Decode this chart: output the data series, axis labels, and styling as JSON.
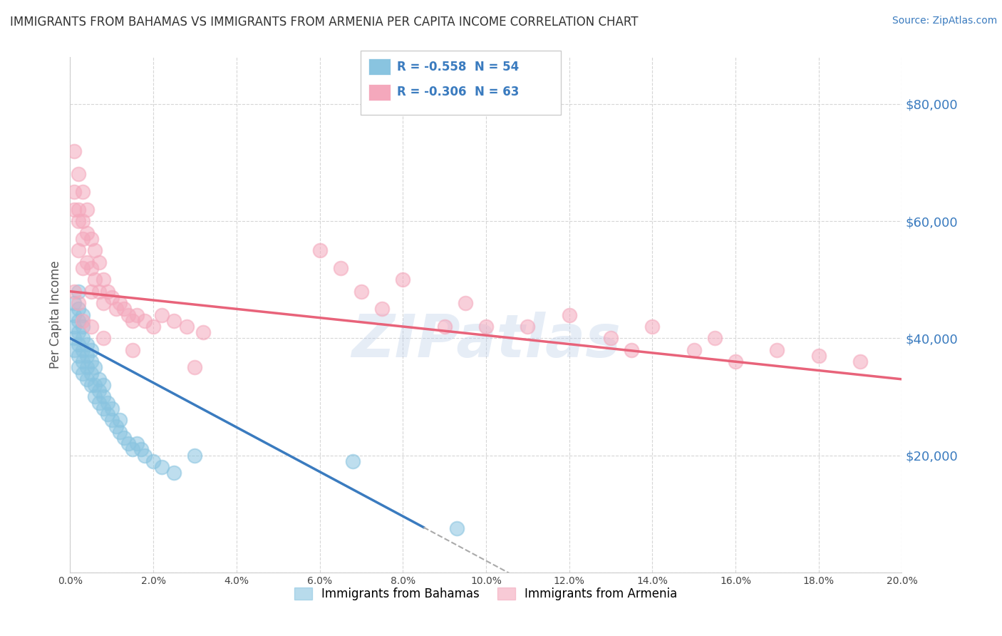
{
  "title": "IMMIGRANTS FROM BAHAMAS VS IMMIGRANTS FROM ARMENIA PER CAPITA INCOME CORRELATION CHART",
  "source": "Source: ZipAtlas.com",
  "ylabel": "Per Capita Income",
  "xmin": 0.0,
  "xmax": 0.2,
  "ymin": 0,
  "ymax": 88000,
  "yticks": [
    0,
    20000,
    40000,
    60000,
    80000
  ],
  "ytick_labels": [
    "",
    "$20,000",
    "$40,000",
    "$60,000",
    "$80,000"
  ],
  "legend_r1": "-0.558",
  "legend_n1": "54",
  "legend_r2": "-0.306",
  "legend_n2": "63",
  "label1": "Immigrants from Bahamas",
  "label2": "Immigrants from Armenia",
  "color1": "#89c4e0",
  "color2": "#f4a8bc",
  "line_color1": "#3a7bbf",
  "line_color2": "#e8637a",
  "watermark": "ZIPatlas",
  "bah_intercept": 40000,
  "bah_slope": -380000,
  "arm_intercept": 48000,
  "arm_slope": -75000,
  "bah_line_xstart": 0.0,
  "bah_line_xend": 0.085,
  "bah_dash_xstart": 0.085,
  "bah_dash_xend": 0.145,
  "arm_line_xstart": 0.0,
  "arm_line_xend": 0.2,
  "bahamas_x": [
    0.001,
    0.001,
    0.001,
    0.001,
    0.001,
    0.002,
    0.002,
    0.002,
    0.002,
    0.002,
    0.002,
    0.002,
    0.003,
    0.003,
    0.003,
    0.003,
    0.003,
    0.003,
    0.004,
    0.004,
    0.004,
    0.004,
    0.005,
    0.005,
    0.005,
    0.005,
    0.006,
    0.006,
    0.006,
    0.007,
    0.007,
    0.007,
    0.008,
    0.008,
    0.008,
    0.009,
    0.009,
    0.01,
    0.01,
    0.011,
    0.012,
    0.012,
    0.013,
    0.014,
    0.015,
    0.016,
    0.017,
    0.018,
    0.02,
    0.022,
    0.025,
    0.03,
    0.068,
    0.093
  ],
  "bahamas_y": [
    38000,
    40000,
    42000,
    44000,
    46000,
    35000,
    37000,
    39000,
    41000,
    43000,
    45000,
    48000,
    34000,
    36000,
    38000,
    40000,
    42000,
    44000,
    33000,
    35000,
    37000,
    39000,
    32000,
    34000,
    36000,
    38000,
    30000,
    32000,
    35000,
    29000,
    31000,
    33000,
    28000,
    30000,
    32000,
    27000,
    29000,
    26000,
    28000,
    25000,
    24000,
    26000,
    23000,
    22000,
    21000,
    22000,
    21000,
    20000,
    19000,
    18000,
    17000,
    20000,
    19000,
    7500
  ],
  "armenia_x": [
    0.001,
    0.001,
    0.001,
    0.002,
    0.002,
    0.002,
    0.002,
    0.003,
    0.003,
    0.003,
    0.003,
    0.004,
    0.004,
    0.004,
    0.005,
    0.005,
    0.005,
    0.006,
    0.006,
    0.007,
    0.007,
    0.008,
    0.008,
    0.009,
    0.01,
    0.011,
    0.012,
    0.013,
    0.014,
    0.015,
    0.016,
    0.018,
    0.02,
    0.022,
    0.025,
    0.028,
    0.032,
    0.06,
    0.065,
    0.07,
    0.075,
    0.08,
    0.09,
    0.095,
    0.1,
    0.11,
    0.12,
    0.13,
    0.135,
    0.14,
    0.15,
    0.155,
    0.16,
    0.17,
    0.18,
    0.19,
    0.001,
    0.002,
    0.003,
    0.005,
    0.008,
    0.015,
    0.03
  ],
  "armenia_y": [
    72000,
    65000,
    62000,
    68000,
    62000,
    60000,
    55000,
    65000,
    60000,
    57000,
    52000,
    62000,
    58000,
    53000,
    57000,
    52000,
    48000,
    55000,
    50000,
    53000,
    48000,
    50000,
    46000,
    48000,
    47000,
    45000,
    46000,
    45000,
    44000,
    43000,
    44000,
    43000,
    42000,
    44000,
    43000,
    42000,
    41000,
    55000,
    52000,
    48000,
    45000,
    50000,
    42000,
    46000,
    42000,
    42000,
    44000,
    40000,
    38000,
    42000,
    38000,
    40000,
    36000,
    38000,
    37000,
    36000,
    48000,
    46000,
    43000,
    42000,
    40000,
    38000,
    35000
  ]
}
